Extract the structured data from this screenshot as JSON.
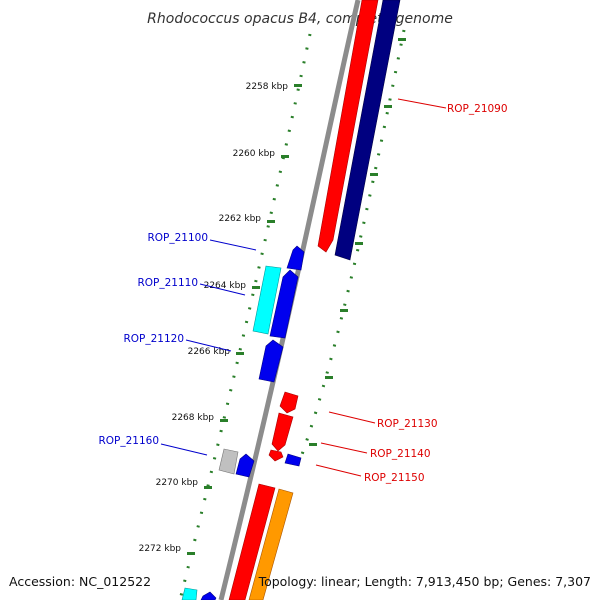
{
  "title": "Rhodococcus opacus B4, complete genome",
  "footer": {
    "accession": "Accession: NC_012522",
    "topology": "Topology: linear; Length: 7,913,450 bp; Genes: 7,307"
  },
  "ruler": {
    "unit": "kbp",
    "major_ticks": [
      {
        "kbp": 2258,
        "label": "2258 kbp"
      },
      {
        "kbp": 2260,
        "label": "2260 kbp"
      },
      {
        "kbp": 2262,
        "label": "2262 kbp"
      },
      {
        "kbp": 2264,
        "label": "2264 kbp"
      },
      {
        "kbp": 2266,
        "label": "2266 kbp"
      },
      {
        "kbp": 2268,
        "label": "2268 kbp"
      },
      {
        "kbp": 2270,
        "label": "2270 kbp"
      },
      {
        "kbp": 2272,
        "label": "2272 kbp"
      }
    ]
  },
  "colors": {
    "backbone": "#8c8c8c",
    "ruler": "#2a7f2a",
    "forward_label": "#0000cc",
    "reverse_label": "#dd0000"
  },
  "genes": [
    {
      "label": "ROP_21090",
      "strand": "reverse",
      "label_color": "#dd0000"
    },
    {
      "label": "ROP_21100",
      "strand": "forward",
      "label_color": "#0000cc"
    },
    {
      "label": "ROP_21110",
      "strand": "forward",
      "label_color": "#0000cc"
    },
    {
      "label": "ROP_21120",
      "strand": "forward",
      "label_color": "#0000cc"
    },
    {
      "label": "ROP_21130",
      "strand": "reverse",
      "label_color": "#dd0000"
    },
    {
      "label": "ROP_21140",
      "strand": "reverse",
      "label_color": "#dd0000"
    },
    {
      "label": "ROP_21150",
      "strand": "reverse",
      "label_color": "#dd0000"
    },
    {
      "label": "ROP_21160",
      "strand": "forward",
      "label_color": "#0000cc"
    }
  ]
}
